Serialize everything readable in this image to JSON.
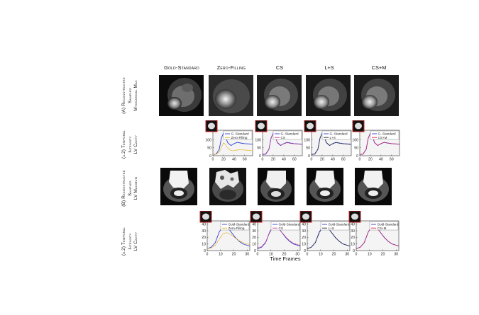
{
  "columns": [
    "Gold-Standard",
    "Zero-Filling",
    "CS",
    "L+S",
    "CS+M"
  ],
  "row_labels": {
    "a1": [
      "(A) Reconstructed",
      "Samples",
      "Myocardial Max"
    ],
    "a2": [
      "(a.2) Temporal",
      "Intensity",
      "LV Cavity"
    ],
    "b1": [
      "(B) Reconstructed",
      "Samples",
      "LV Maximum"
    ],
    "b2": [
      "(b.2) Temporal",
      "Intensity",
      "LV Cavity"
    ]
  },
  "x_axis_label": "Time Frames",
  "colors": {
    "gold": "#2b3fd1",
    "zero": "#e8b020",
    "cs": "#cc3a8a",
    "ls": "#2a2a2a",
    "csm": "#e0205a"
  },
  "chart_data": [
    {
      "type": "line",
      "panel": "a2-zero",
      "ylim": [
        0,
        160
      ],
      "yticks": [
        "0",
        "50",
        "100"
      ],
      "xlim": [
        0,
        75
      ],
      "xticks": [
        "0",
        "20",
        "40",
        "60"
      ],
      "x": [
        0,
        6,
        12,
        16,
        20,
        24,
        28,
        34,
        40,
        46,
        52,
        60,
        68,
        75
      ],
      "series": [
        {
          "name": "G.-Standard",
          "color": "#2b3fd1",
          "values": [
            8,
            10,
            40,
            110,
            142,
            118,
            82,
            64,
            76,
            84,
            80,
            76,
            74,
            72
          ]
        },
        {
          "name": "Zero-Filling",
          "color": "#e8b020",
          "values": [
            8,
            9,
            22,
            52,
            82,
            70,
            48,
            34,
            32,
            36,
            38,
            36,
            34,
            34
          ]
        }
      ]
    },
    {
      "type": "line",
      "panel": "a2-cs",
      "ylim": [
        0,
        160
      ],
      "yticks": [
        "0",
        "50",
        "100"
      ],
      "xlim": [
        0,
        75
      ],
      "xticks": [
        "0",
        "20",
        "40",
        "60"
      ],
      "x": [
        0,
        6,
        12,
        16,
        20,
        24,
        28,
        34,
        40,
        46,
        52,
        60,
        68,
        75
      ],
      "series": [
        {
          "name": "G.-Standard",
          "color": "#2b3fd1",
          "values": [
            8,
            10,
            40,
            110,
            142,
            118,
            82,
            64,
            76,
            84,
            80,
            76,
            74,
            72
          ]
        },
        {
          "name": "CS",
          "color": "#cc3a8a",
          "values": [
            10,
            12,
            42,
            108,
            138,
            116,
            84,
            66,
            74,
            82,
            78,
            75,
            73,
            71
          ]
        }
      ]
    },
    {
      "type": "line",
      "panel": "a2-ls",
      "ylim": [
        0,
        160
      ],
      "yticks": [
        "0",
        "50",
        "100"
      ],
      "xlim": [
        0,
        75
      ],
      "xticks": [
        "0",
        "20",
        "40",
        "60"
      ],
      "x": [
        0,
        6,
        12,
        16,
        20,
        24,
        28,
        34,
        40,
        46,
        52,
        60,
        68,
        75
      ],
      "series": [
        {
          "name": "G.-Standard",
          "color": "#2b3fd1",
          "values": [
            8,
            10,
            40,
            110,
            142,
            118,
            82,
            64,
            76,
            84,
            80,
            76,
            74,
            72
          ]
        },
        {
          "name": "L+S",
          "color": "#2a2a2a",
          "values": [
            9,
            11,
            41,
            109,
            140,
            117,
            83,
            65,
            75,
            83,
            79,
            75,
            73,
            71
          ]
        }
      ]
    },
    {
      "type": "line",
      "panel": "a2-csm",
      "ylim": [
        0,
        160
      ],
      "yticks": [
        "0",
        "50",
        "100"
      ],
      "xlim": [
        0,
        75
      ],
      "xticks": [
        "0",
        "20",
        "40",
        "60"
      ],
      "x": [
        0,
        6,
        12,
        16,
        20,
        24,
        28,
        34,
        40,
        46,
        52,
        60,
        68,
        75
      ],
      "series": [
        {
          "name": "G.-Standard",
          "color": "#2b3fd1",
          "values": [
            8,
            10,
            40,
            110,
            142,
            118,
            82,
            64,
            76,
            84,
            80,
            76,
            74,
            72
          ]
        },
        {
          "name": "CS+M",
          "color": "#e0205a",
          "values": [
            9,
            10,
            40,
            110,
            141,
            118,
            82,
            64,
            76,
            84,
            80,
            76,
            74,
            72
          ]
        }
      ]
    },
    {
      "type": "line",
      "panel": "b2-zero",
      "ylim": [
        0,
        45
      ],
      "yticks": [
        "0",
        "10",
        "20",
        "30",
        "40"
      ],
      "xlim": [
        0,
        32
      ],
      "xticks": [
        "0",
        "10",
        "20",
        "30"
      ],
      "x": [
        0,
        3,
        6,
        9,
        12,
        15,
        18,
        21,
        24,
        27,
        30,
        32
      ],
      "series": [
        {
          "name": "Gold-Standard",
          "color": "#2b3fd1",
          "values": [
            3,
            5,
            12,
            28,
            38,
            36,
            28,
            20,
            14,
            10,
            8,
            7
          ]
        },
        {
          "name": "Zero-Filling",
          "color": "#e8b020",
          "values": [
            3,
            4,
            8,
            17,
            26,
            27,
            24,
            19,
            15,
            12,
            10,
            9
          ]
        }
      ]
    },
    {
      "type": "line",
      "panel": "b2-cs",
      "ylim": [
        0,
        45
      ],
      "yticks": [
        "0",
        "10",
        "20",
        "30",
        "40"
      ],
      "xlim": [
        0,
        32
      ],
      "xticks": [
        "0",
        "10",
        "20",
        "30"
      ],
      "x": [
        0,
        3,
        6,
        9,
        12,
        15,
        18,
        21,
        24,
        27,
        30,
        32
      ],
      "series": [
        {
          "name": "Gold-Standard",
          "color": "#2b3fd1",
          "values": [
            3,
            5,
            12,
            28,
            38,
            36,
            28,
            20,
            14,
            10,
            8,
            7
          ]
        },
        {
          "name": "CS",
          "color": "#cc3a8a",
          "values": [
            4,
            6,
            13,
            27,
            36,
            35,
            28,
            21,
            15,
            11,
            9,
            8
          ]
        }
      ]
    },
    {
      "type": "line",
      "panel": "b2-ls",
      "ylim": [
        0,
        45
      ],
      "yticks": [
        "0",
        "10",
        "20",
        "30",
        "40"
      ],
      "xlim": [
        0,
        32
      ],
      "xticks": [
        "0",
        "10",
        "20",
        "30"
      ],
      "x": [
        0,
        3,
        6,
        9,
        12,
        15,
        18,
        21,
        24,
        27,
        30,
        32
      ],
      "series": [
        {
          "name": "Gold-Standard",
          "color": "#2b3fd1",
          "values": [
            3,
            5,
            12,
            28,
            38,
            36,
            28,
            20,
            14,
            10,
            8,
            7
          ]
        },
        {
          "name": "L+S",
          "color": "#2a2a2a",
          "values": [
            3,
            5,
            12,
            27,
            37,
            36,
            28,
            20,
            14,
            10,
            8,
            7
          ]
        }
      ]
    },
    {
      "type": "line",
      "panel": "b2-csm",
      "ylim": [
        0,
        45
      ],
      "yticks": [
        "0",
        "10",
        "20",
        "30",
        "40"
      ],
      "xlim": [
        0,
        32
      ],
      "xticks": [
        "0",
        "10",
        "20",
        "30"
      ],
      "x": [
        0,
        3,
        6,
        9,
        12,
        15,
        18,
        21,
        24,
        27,
        30,
        32
      ],
      "series": [
        {
          "name": "Gold-Standard",
          "color": "#2b3fd1",
          "values": [
            3,
            5,
            12,
            28,
            38,
            36,
            28,
            20,
            14,
            10,
            8,
            7
          ]
        },
        {
          "name": "CS+M",
          "color": "#e0205a",
          "values": [
            3,
            5,
            12,
            28,
            38,
            36,
            28,
            20,
            14,
            10,
            8,
            7
          ]
        }
      ]
    }
  ]
}
